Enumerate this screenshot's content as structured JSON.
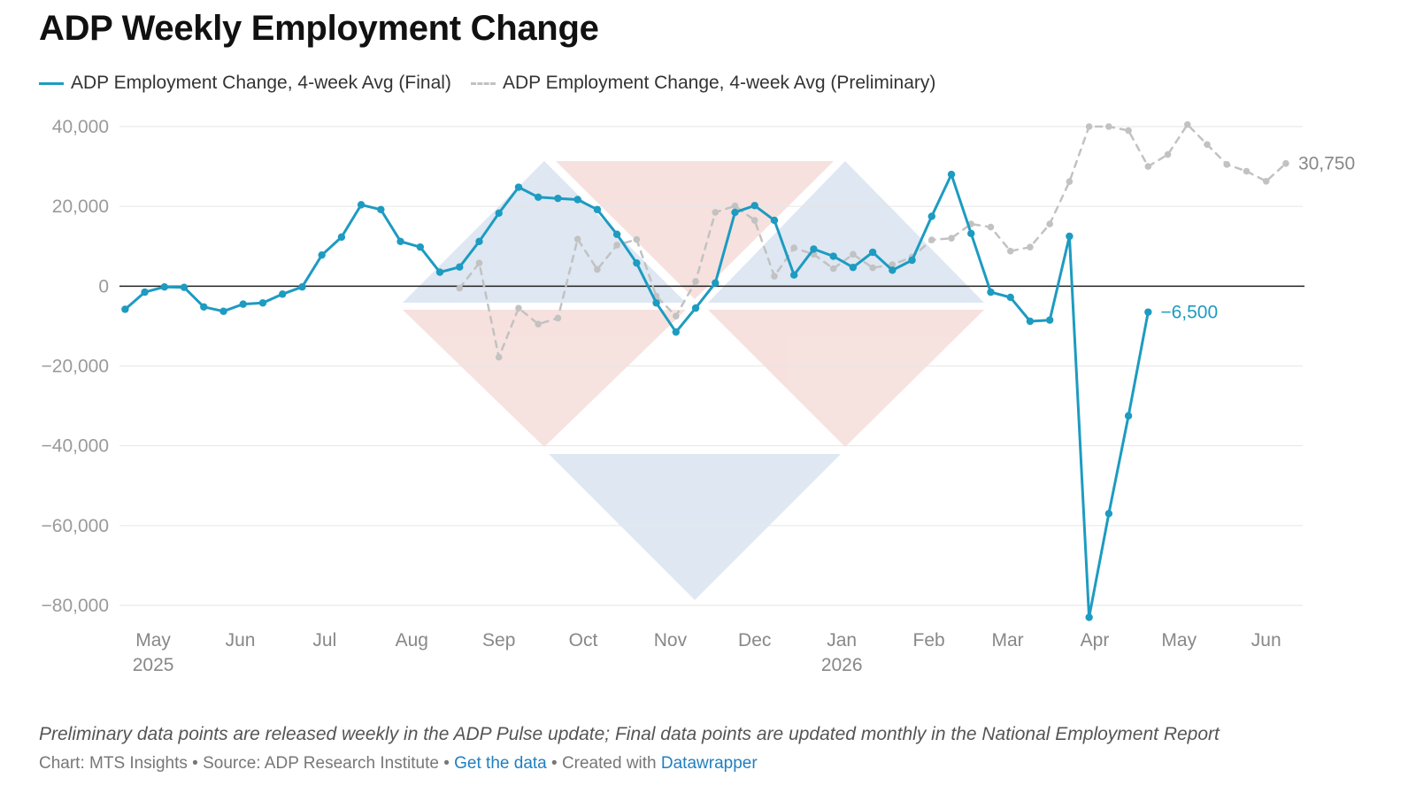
{
  "title": "ADP Weekly Employment Change",
  "legend": {
    "final": "ADP Employment Change, 4-week Avg (Final)",
    "preliminary": "ADP Employment Change, 4-week Avg (Preliminary)"
  },
  "footnote": "Preliminary data points are released weekly in the ADP Pulse update; Final data points are updated monthly in the National Employment Report",
  "credit": {
    "prefix": "Chart: MTS Insights • Source: ADP Research Institute • ",
    "get_data": "Get the data",
    "middle": " • Created with ",
    "datawrapper": "Datawrapper"
  },
  "colors": {
    "final": "#1d9bc1",
    "preliminary": "#c2c2c2",
    "zero_line": "#222222",
    "grid": "#e6e6e6"
  },
  "chart_data": {
    "type": "line",
    "title": "ADP Weekly Employment Change",
    "ylim": [
      -80000,
      40000
    ],
    "yticks": [
      40000,
      20000,
      0,
      -20000,
      -40000,
      -60000,
      -80000
    ],
    "ytick_labels": [
      "40,000",
      "20,000",
      "0",
      "−20,000",
      "−40,000",
      "−60,000",
      "−80,000"
    ],
    "xlim": [
      "2025-04-19",
      "2026-06-14"
    ],
    "xticks": [
      {
        "date": "2025-05-01",
        "label": "May",
        "year": "2025"
      },
      {
        "date": "2025-06-01",
        "label": "Jun",
        "year": ""
      },
      {
        "date": "2025-07-01",
        "label": "Jul",
        "year": ""
      },
      {
        "date": "2025-08-01",
        "label": "Aug",
        "year": ""
      },
      {
        "date": "2025-09-01",
        "label": "Sep",
        "year": ""
      },
      {
        "date": "2025-10-01",
        "label": "Oct",
        "year": ""
      },
      {
        "date": "2025-11-01",
        "label": "Nov",
        "year": ""
      },
      {
        "date": "2025-12-01",
        "label": "Dec",
        "year": ""
      },
      {
        "date": "2026-01-01",
        "label": "Jan",
        "year": "2026"
      },
      {
        "date": "2026-02-01",
        "label": "Feb",
        "year": ""
      },
      {
        "date": "2026-03-01",
        "label": "Mar",
        "year": ""
      },
      {
        "date": "2026-04-01",
        "label": "Apr",
        "year": ""
      },
      {
        "date": "2026-05-01",
        "label": "May",
        "year": ""
      },
      {
        "date": "2026-06-01",
        "label": "Jun",
        "year": ""
      }
    ],
    "grid": true,
    "legend_position": "top-left",
    "series": [
      {
        "name": "ADP Employment Change, 4-week Avg (Final)",
        "style": "solid",
        "end_label": "−6,500",
        "points": [
          [
            "2025-04-21",
            -5800
          ],
          [
            "2025-04-28",
            -1500
          ],
          [
            "2025-05-05",
            -200
          ],
          [
            "2025-05-12",
            -300
          ],
          [
            "2025-05-19",
            -5200
          ],
          [
            "2025-05-26",
            -6300
          ],
          [
            "2025-06-02",
            -4500
          ],
          [
            "2025-06-09",
            -4200
          ],
          [
            "2025-06-16",
            -2000
          ],
          [
            "2025-06-23",
            -200
          ],
          [
            "2025-06-30",
            7800
          ],
          [
            "2025-07-07",
            12300
          ],
          [
            "2025-07-14",
            20400
          ],
          [
            "2025-07-21",
            19200
          ],
          [
            "2025-07-28",
            11200
          ],
          [
            "2025-08-04",
            9800
          ],
          [
            "2025-08-11",
            3500
          ],
          [
            "2025-08-18",
            4800
          ],
          [
            "2025-08-25",
            11200
          ],
          [
            "2025-09-01",
            18300
          ],
          [
            "2025-09-08",
            24800
          ],
          [
            "2025-09-15",
            22300
          ],
          [
            "2025-09-22",
            22000
          ],
          [
            "2025-09-29",
            21700
          ],
          [
            "2025-10-06",
            19200
          ],
          [
            "2025-10-13",
            13000
          ],
          [
            "2025-10-20",
            5800
          ],
          [
            "2025-10-27",
            -4200
          ],
          [
            "2025-11-03",
            -11500
          ],
          [
            "2025-11-10",
            -5500
          ],
          [
            "2025-11-17",
            800
          ],
          [
            "2025-11-24",
            18500
          ],
          [
            "2025-12-01",
            20200
          ],
          [
            "2025-12-08",
            16500
          ],
          [
            "2025-12-15",
            2800
          ],
          [
            "2025-12-22",
            9300
          ],
          [
            "2025-12-29",
            7500
          ],
          [
            "2026-01-05",
            4700
          ],
          [
            "2026-01-12",
            8500
          ],
          [
            "2026-01-19",
            4000
          ],
          [
            "2026-01-26",
            6500
          ],
          [
            "2026-02-02",
            17500
          ],
          [
            "2026-02-09",
            28000
          ],
          [
            "2026-02-16",
            13200
          ],
          [
            "2026-02-23",
            -1500
          ],
          [
            "2026-03-02",
            -2800
          ],
          [
            "2026-03-09",
            -8800
          ],
          [
            "2026-03-16",
            -8500
          ],
          [
            "2026-03-23",
            12500
          ],
          [
            "2026-03-30",
            -83000
          ],
          [
            "2026-04-06",
            -57000
          ],
          [
            "2026-04-13",
            -32500
          ],
          [
            "2026-04-20",
            -6500
          ]
        ]
      },
      {
        "name": "ADP Employment Change, 4-week Avg (Preliminary)",
        "style": "dashed",
        "end_label": "30,750",
        "points": [
          [
            "2025-08-18",
            -500
          ],
          [
            "2025-08-25",
            5800
          ],
          [
            "2025-09-01",
            -17800
          ],
          [
            "2025-09-08",
            -5500
          ],
          [
            "2025-09-15",
            -9500
          ],
          [
            "2025-09-22",
            -8000
          ],
          [
            "2025-09-29",
            11800
          ],
          [
            "2025-10-06",
            4200
          ],
          [
            "2025-10-13",
            10300
          ],
          [
            "2025-10-20",
            11700
          ],
          [
            "2025-10-27",
            -2500
          ],
          [
            "2025-11-03",
            -7500
          ],
          [
            "2025-11-10",
            1200
          ],
          [
            "2025-11-17",
            18500
          ],
          [
            "2025-11-24",
            20100
          ],
          [
            "2025-12-01",
            16500
          ],
          [
            "2025-12-08",
            2500
          ],
          [
            "2025-12-15",
            9600
          ],
          [
            "2025-12-22",
            8000
          ],
          [
            "2025-12-29",
            4400
          ],
          [
            "2026-01-05",
            8000
          ],
          [
            "2026-01-12",
            4600
          ],
          [
            "2026-01-19",
            5400
          ],
          [
            "2026-01-26",
            7300
          ],
          [
            "2026-02-02",
            11600
          ],
          [
            "2026-02-09",
            12000
          ],
          [
            "2026-02-16",
            15600
          ],
          [
            "2026-02-23",
            14800
          ],
          [
            "2026-03-02",
            8800
          ],
          [
            "2026-03-09",
            9800
          ],
          [
            "2026-03-16",
            15600
          ],
          [
            "2026-03-23",
            26200
          ],
          [
            "2026-03-30",
            40000
          ],
          [
            "2026-04-06",
            40000
          ],
          [
            "2026-04-13",
            39000
          ],
          [
            "2026-04-20",
            30000
          ],
          [
            "2026-04-27",
            33000
          ],
          [
            "2026-05-04",
            40500
          ],
          [
            "2026-05-11",
            35500
          ],
          [
            "2026-05-18",
            30500
          ],
          [
            "2026-05-25",
            28800
          ],
          [
            "2026-06-01",
            26300
          ],
          [
            "2026-06-08",
            30750
          ]
        ]
      }
    ]
  }
}
